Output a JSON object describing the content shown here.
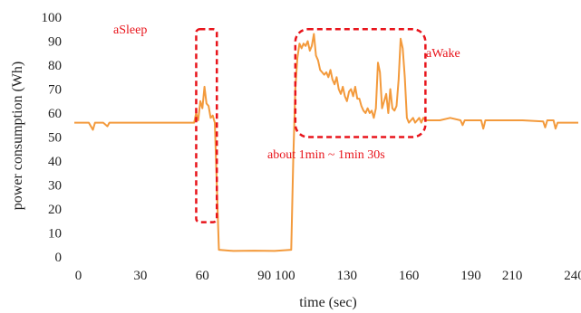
{
  "chart_data": {
    "type": "line",
    "title": "",
    "xlabel": "time (sec)",
    "ylabel": "power consumption (Wh)",
    "xlim": [
      -2,
      242
    ],
    "ylim": [
      0,
      100
    ],
    "x_ticks": [
      0,
      30,
      60,
      90,
      100,
      130,
      160,
      190,
      210,
      240
    ],
    "y_ticks": [
      0,
      10,
      20,
      30,
      40,
      50,
      60,
      70,
      80,
      90,
      100
    ],
    "grid": false,
    "line_color": "#f39a3c",
    "annotation_color": "#e8141b",
    "series": [
      {
        "name": "",
        "points": [
          [
            -2,
            56
          ],
          [
            5,
            56
          ],
          [
            7,
            53
          ],
          [
            8,
            56
          ],
          [
            12,
            56
          ],
          [
            14,
            54.5
          ],
          [
            15,
            56
          ],
          [
            30,
            56
          ],
          [
            45,
            56
          ],
          [
            56,
            56
          ],
          [
            57,
            60
          ],
          [
            58,
            57
          ],
          [
            59,
            65
          ],
          [
            60,
            62
          ],
          [
            61,
            71
          ],
          [
            62,
            64
          ],
          [
            63,
            63
          ],
          [
            64,
            58
          ],
          [
            65,
            59
          ],
          [
            66,
            56
          ],
          [
            67,
            30
          ],
          [
            68,
            3
          ],
          [
            75,
            2.5
          ],
          [
            85,
            2.6
          ],
          [
            95,
            2.5
          ],
          [
            103,
            3
          ],
          [
            104,
            40
          ],
          [
            105,
            70
          ],
          [
            106,
            83
          ],
          [
            107,
            89
          ],
          [
            108,
            87
          ],
          [
            109,
            89
          ],
          [
            110,
            88
          ],
          [
            111,
            90
          ],
          [
            112,
            86
          ],
          [
            113,
            88
          ],
          [
            114,
            93
          ],
          [
            115,
            84
          ],
          [
            116,
            82
          ],
          [
            117,
            78
          ],
          [
            118,
            77
          ],
          [
            119,
            76
          ],
          [
            120,
            77
          ],
          [
            121,
            75
          ],
          [
            122,
            78
          ],
          [
            123,
            74
          ],
          [
            124,
            72
          ],
          [
            125,
            75
          ],
          [
            126,
            70
          ],
          [
            127,
            68
          ],
          [
            128,
            71
          ],
          [
            129,
            67
          ],
          [
            130,
            65
          ],
          [
            131,
            69
          ],
          [
            132,
            70
          ],
          [
            133,
            67
          ],
          [
            134,
            71
          ],
          [
            135,
            66
          ],
          [
            136,
            66
          ],
          [
            137,
            63
          ],
          [
            138,
            61
          ],
          [
            139,
            60
          ],
          [
            140,
            62
          ],
          [
            141,
            60
          ],
          [
            142,
            61
          ],
          [
            143,
            58
          ],
          [
            144,
            62
          ],
          [
            145,
            81
          ],
          [
            146,
            77
          ],
          [
            147,
            62
          ],
          [
            148,
            65
          ],
          [
            149,
            68
          ],
          [
            150,
            60
          ],
          [
            151,
            70
          ],
          [
            152,
            62
          ],
          [
            153,
            61
          ],
          [
            154,
            63
          ],
          [
            155,
            74
          ],
          [
            156,
            91
          ],
          [
            157,
            87
          ],
          [
            158,
            75
          ],
          [
            159,
            58
          ],
          [
            160,
            56
          ],
          [
            161,
            57
          ],
          [
            162,
            58
          ],
          [
            163,
            56
          ],
          [
            164,
            57
          ],
          [
            165,
            58
          ],
          [
            166,
            56
          ],
          [
            167,
            58
          ],
          [
            168,
            57
          ],
          [
            170,
            57
          ],
          [
            175,
            57
          ],
          [
            180,
            58
          ],
          [
            185,
            57
          ],
          [
            186,
            55
          ],
          [
            187,
            57
          ],
          [
            195,
            57
          ],
          [
            196,
            53.5
          ],
          [
            197,
            57
          ],
          [
            205,
            57
          ],
          [
            215,
            57
          ],
          [
            225,
            56.5
          ],
          [
            226,
            54
          ],
          [
            227,
            57
          ],
          [
            230,
            57
          ],
          [
            231,
            53.5
          ],
          [
            232,
            56
          ],
          [
            240,
            56
          ],
          [
            242,
            56
          ]
        ]
      }
    ],
    "annotations": [
      {
        "label": "aSleep",
        "box_x": [
          57,
          67
        ],
        "box_y": [
          14.5,
          95
        ]
      },
      {
        "label": "aWake",
        "box_x": [
          105,
          168
        ],
        "box_y": [
          50,
          95
        ]
      },
      {
        "label": "about 1min ~ 1min 30s"
      }
    ]
  }
}
